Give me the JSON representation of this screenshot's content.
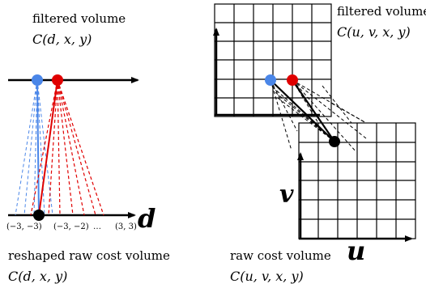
{
  "left_panel": {
    "top_caption": "filtered volume",
    "top_formula": "C(d, x, y)",
    "axis_label": "d",
    "tick_labels": [
      "(−3, −3)",
      "(−3, −2)",
      "…",
      "(3, 3)"
    ],
    "bottom_caption": "reshaped raw cost volume",
    "bottom_formula": "C(d, x, y)"
  },
  "right_panel": {
    "top_caption": "filtered volume",
    "top_formula": "C(u, v, x, y)",
    "v_label": "v",
    "u_label": "u",
    "bottom_caption": "raw cost volume",
    "bottom_formula": "C(u, v, x, y)"
  },
  "colors": {
    "blue": "#4a86e8",
    "red": "#e00000",
    "black": "#000000"
  }
}
